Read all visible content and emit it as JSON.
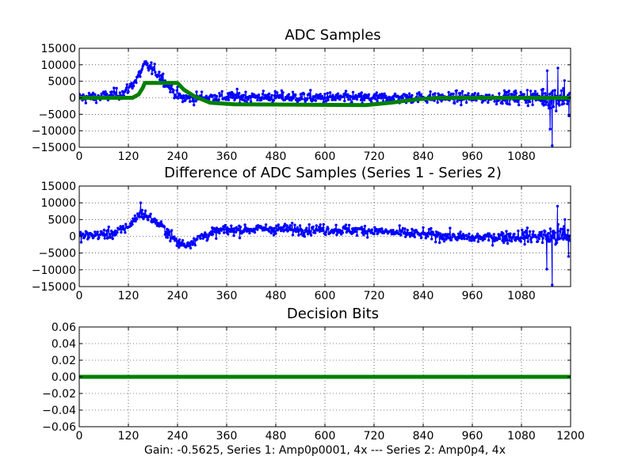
{
  "figure": {
    "caption": "Gain: -0.5625, Series 1: Amp0p0001, 4x --- Series 2: Amp0p4, 4x"
  },
  "chart_data": [
    {
      "type": "line",
      "title": "ADC Samples",
      "xlabel": "",
      "ylabel": "",
      "xlim": [
        0,
        1200
      ],
      "ylim": [
        -15000,
        15000
      ],
      "xticks": [
        0,
        120,
        240,
        360,
        480,
        600,
        720,
        840,
        960,
        1080
      ],
      "yticks": [
        -15000,
        -10000,
        -5000,
        0,
        5000,
        10000,
        15000
      ],
      "grid": true,
      "series": [
        {
          "name": "Series 1",
          "color": "#0000ff",
          "style": "line-with-dots",
          "trend": [
            [
              0,
              0
            ],
            [
              60,
              300
            ],
            [
              110,
              1500
            ],
            [
              140,
              5500
            ],
            [
              160,
              10000
            ],
            [
              175,
              9000
            ],
            [
              200,
              6500
            ],
            [
              225,
              2500
            ],
            [
              250,
              -200
            ],
            [
              300,
              100
            ],
            [
              400,
              300
            ],
            [
              500,
              200
            ],
            [
              600,
              0
            ],
            [
              700,
              -100
            ],
            [
              800,
              100
            ],
            [
              900,
              0
            ],
            [
              1000,
              0
            ],
            [
              1100,
              200
            ],
            [
              1200,
              0
            ]
          ],
          "noise": [
            [
              0,
              2200
            ],
            [
              1000,
              2200
            ],
            [
              1100,
              3000
            ],
            [
              1160,
              5000
            ],
            [
              1200,
              4000
            ]
          ],
          "spikes": [
            [
              1155,
              -14500
            ],
            [
              1143,
              8200
            ],
            [
              1169,
              9000
            ],
            [
              1185,
              5200
            ],
            [
              1196,
              -5500
            ],
            [
              1150,
              -9500
            ]
          ]
        },
        {
          "name": "Series 2",
          "color": "#008000",
          "style": "thick-line",
          "points": [
            [
              0,
              0
            ],
            [
              130,
              0
            ],
            [
              145,
              1000
            ],
            [
              155,
              3000
            ],
            [
              160,
              4500
            ],
            [
              240,
              4500
            ],
            [
              255,
              2500
            ],
            [
              280,
              500
            ],
            [
              320,
              -1500
            ],
            [
              380,
              -2000
            ],
            [
              700,
              -2200
            ],
            [
              760,
              -1500
            ],
            [
              820,
              -500
            ],
            [
              880,
              0
            ],
            [
              1200,
              0
            ]
          ]
        }
      ]
    },
    {
      "type": "line",
      "title": "Difference of ADC Samples (Series 1 - Series 2)",
      "xlabel": "",
      "ylabel": "",
      "xlim": [
        0,
        1200
      ],
      "ylim": [
        -15000,
        15000
      ],
      "xticks": [
        0,
        120,
        240,
        360,
        480,
        600,
        720,
        840,
        960,
        1080
      ],
      "yticks": [
        -15000,
        -10000,
        -5000,
        0,
        5000,
        10000,
        15000
      ],
      "grid": true,
      "series": [
        {
          "name": "Series 1 - Series 2",
          "color": "#0000ff",
          "style": "line-with-dots",
          "trend": [
            [
              0,
              0
            ],
            [
              90,
              1000
            ],
            [
              120,
              3000
            ],
            [
              150,
              7000
            ],
            [
              180,
              5000
            ],
            [
              210,
              2000
            ],
            [
              240,
              -2000
            ],
            [
              260,
              -2500
            ],
            [
              300,
              0
            ],
            [
              350,
              1800
            ],
            [
              450,
              2200
            ],
            [
              600,
              2000
            ],
            [
              700,
              1800
            ],
            [
              780,
              1000
            ],
            [
              850,
              500
            ],
            [
              960,
              -500
            ],
            [
              1060,
              0
            ],
            [
              1200,
              0
            ]
          ],
          "noise": [
            [
              0,
              2000
            ],
            [
              1000,
              2000
            ],
            [
              1100,
              2800
            ],
            [
              1160,
              4500
            ],
            [
              1200,
              3800
            ]
          ],
          "spikes": [
            [
              1155,
              -14500
            ],
            [
              1142,
              -9800
            ],
            [
              1168,
              9000
            ],
            [
              1186,
              5000
            ],
            [
              1195,
              -6000
            ],
            [
              150,
              10000
            ]
          ]
        }
      ]
    },
    {
      "type": "line",
      "title": "Decision Bits",
      "xlabel": "",
      "ylabel": "",
      "xlim": [
        0,
        1200
      ],
      "ylim": [
        -0.06,
        0.06
      ],
      "xticks": [
        0,
        120,
        240,
        360,
        480,
        600,
        720,
        840,
        960,
        1080,
        1200
      ],
      "yticks": [
        -0.06,
        -0.04,
        -0.02,
        0.0,
        0.02,
        0.04,
        0.06
      ],
      "ytick_labels": [
        "−0.06",
        "−0.04",
        "−0.02",
        "0.00",
        "0.02",
        "0.04",
        "0.06"
      ],
      "grid": true,
      "series": [
        {
          "name": "Decision Bits",
          "color": "#008000",
          "style": "thick-line",
          "points": [
            [
              0,
              0
            ],
            [
              1200,
              0
            ]
          ]
        }
      ]
    }
  ]
}
